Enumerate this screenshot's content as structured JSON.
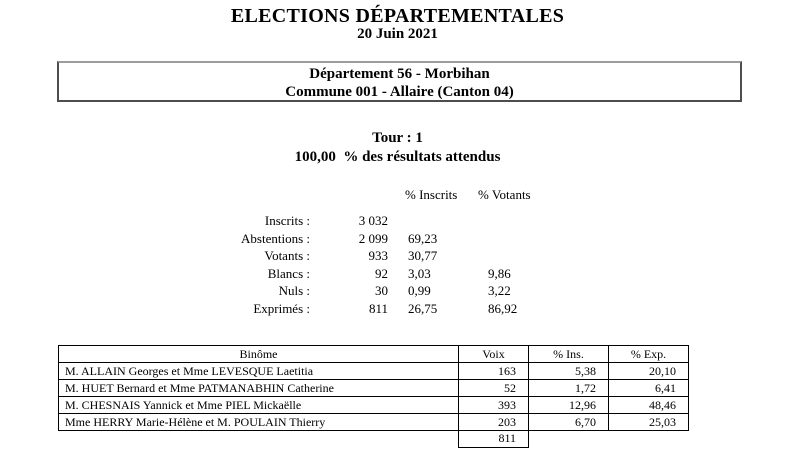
{
  "header": {
    "title": "ELECTIONS DÉPARTEMENTALES",
    "date": "20 Juin 2021"
  },
  "location_box": {
    "line1": "Département 56 - Morbihan",
    "line2": "Commune 001 - Allaire (Canton 04)"
  },
  "round": {
    "tour": "Tour : 1",
    "progress": "100,00  % des résultats attendus"
  },
  "summary": {
    "header_inscrits": "% Inscrits",
    "header_votants": "% Votants",
    "rows": [
      {
        "label": "Inscrits :",
        "value": "3 032",
        "pct_inscrits": "",
        "pct_votants": ""
      },
      {
        "label": "Abstentions :",
        "value": "2 099",
        "pct_inscrits": "69,23",
        "pct_votants": ""
      },
      {
        "label": "Votants :",
        "value": "933",
        "pct_inscrits": "30,77",
        "pct_votants": ""
      },
      {
        "label": "Blancs :",
        "value": "92",
        "pct_inscrits": "3,03",
        "pct_votants": "9,86"
      },
      {
        "label": "Nuls :",
        "value": "30",
        "pct_inscrits": "0,99",
        "pct_votants": "3,22"
      },
      {
        "label": "Exprimés :",
        "value": "811",
        "pct_inscrits": "26,75",
        "pct_votants": "86,92"
      }
    ]
  },
  "results_table": {
    "headers": [
      "Binôme",
      "Voix",
      "% Ins.",
      "% Exp."
    ],
    "rows": [
      {
        "binome": "M. ALLAIN Georges et Mme LEVESQUE Laetitia",
        "voix": "163",
        "pct_ins": "5,38",
        "pct_exp": "20,10"
      },
      {
        "binome": "M. HUET Bernard et Mme PATMANABHIN Catherine",
        "voix": "52",
        "pct_ins": "1,72",
        "pct_exp": "6,41"
      },
      {
        "binome": "M. CHESNAIS Yannick et Mme PIEL Mickaëlle",
        "voix": "393",
        "pct_ins": "12,96",
        "pct_exp": "48,46"
      },
      {
        "binome": "Mme HERRY Marie-Hélène et M. POULAIN Thierry",
        "voix": "203",
        "pct_ins": "6,70",
        "pct_exp": "25,03"
      }
    ],
    "total_voix": "811"
  },
  "colors": {
    "text": "#000000",
    "table_border": "#000000"
  }
}
